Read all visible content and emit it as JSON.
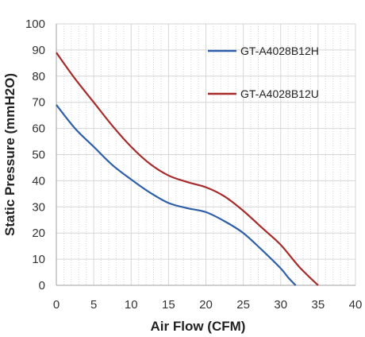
{
  "chart_data": {
    "type": "line",
    "title": "",
    "xlabel": "Air Flow (CFM)",
    "ylabel": "Static Pressure (mmH2O)",
    "xlim": [
      0,
      40
    ],
    "ylim": [
      0,
      100
    ],
    "xticks": [
      0,
      5,
      10,
      15,
      20,
      25,
      30,
      35,
      40
    ],
    "yticks": [
      0,
      10,
      20,
      30,
      40,
      50,
      60,
      70,
      80,
      90,
      100
    ],
    "grid": true,
    "legend_position": "top-right",
    "series": [
      {
        "name": "GT-A4028B12H",
        "color": "#2e5fa8",
        "x": [
          0,
          2.5,
          5,
          7.5,
          10,
          12.5,
          15,
          17.5,
          20,
          22.5,
          25,
          27.5,
          30,
          31,
          32
        ],
        "y": [
          69,
          60,
          53,
          46,
          40.5,
          35.5,
          31.5,
          29.5,
          28,
          24.5,
          20,
          13.5,
          6.5,
          3,
          0
        ]
      },
      {
        "name": "GT-A4028B12U",
        "color": "#a82b2b",
        "x": [
          0,
          2.5,
          5,
          7.5,
          10,
          12.5,
          15,
          17.5,
          20,
          22.5,
          25,
          27.5,
          30,
          32.5,
          35
        ],
        "y": [
          89,
          79,
          70,
          61,
          53,
          46.5,
          42,
          39.5,
          37.5,
          34,
          28.5,
          22,
          15.5,
          7,
          0
        ]
      }
    ]
  }
}
